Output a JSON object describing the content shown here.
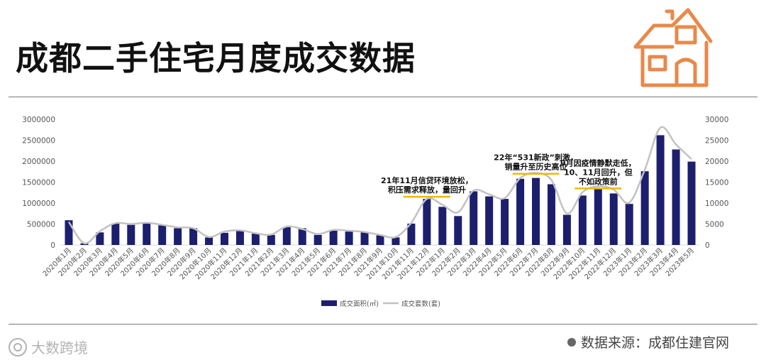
{
  "header": {
    "title": "成都二手住宅月度成交数据"
  },
  "icons": {
    "house": "house-icon",
    "watermark": "weibo-logo-icon"
  },
  "colors": {
    "bar": "#1c1e6e",
    "line": "#c2c2c2",
    "annotation": "#f2b800",
    "house": "#e8894a"
  },
  "footer": {
    "source": "数据来源：成都住建官网",
    "watermark": "大数跨境"
  },
  "chart_data": {
    "type": "bar",
    "categories": [
      "2020年1月",
      "2020年2月",
      "2020年3月",
      "2020年4月",
      "2020年5月",
      "2020年6月",
      "2020年7月",
      "2020年8月",
      "2020年9月",
      "2020年10月",
      "2020年11月",
      "2020年12月",
      "2021年1月",
      "2021年2月",
      "2021年3月",
      "2021年4月",
      "2021年5月",
      "2021年6月",
      "2021年7月",
      "2021年8月",
      "2021年9月",
      "2021年10月",
      "2021年11月",
      "2021年12月",
      "2022年1月",
      "2022年2月",
      "2022年3月",
      "2022年4月",
      "2022年5月",
      "2022年6月",
      "2022年7月",
      "2022年8月",
      "2022年9月",
      "2022年10月",
      "2022年11月",
      "2022年12月",
      "2023年1月",
      "2023年2月",
      "2023年3月",
      "2023年4月",
      "2023年5月"
    ],
    "series": [
      {
        "name": "成交面积(㎡)",
        "type": "bar",
        "axis": "left",
        "values": [
          590000,
          40000,
          300000,
          510000,
          480000,
          510000,
          470000,
          400000,
          400000,
          180000,
          290000,
          340000,
          270000,
          240000,
          430000,
          400000,
          240000,
          340000,
          320000,
          300000,
          230000,
          180000,
          510000,
          1100000,
          910000,
          690000,
          1280000,
          1160000,
          1100000,
          1580000,
          1600000,
          1450000,
          720000,
          1180000,
          1360000,
          1230000,
          980000,
          1760000,
          2620000,
          2280000,
          1990000
        ]
      },
      {
        "name": "成交套数(套)",
        "type": "line",
        "axis": "right",
        "values": [
          5500,
          400,
          3300,
          5200,
          5000,
          5300,
          4800,
          4200,
          4000,
          1900,
          3200,
          3500,
          2800,
          2500,
          4400,
          3800,
          2600,
          3600,
          3400,
          3100,
          2400,
          1900,
          5300,
          11000,
          9600,
          7800,
          13000,
          12100,
          11200,
          16000,
          17200,
          15500,
          7500,
          12600,
          14000,
          13200,
          10100,
          18000,
          28000,
          24000,
          20500
        ]
      }
    ],
    "yleft": {
      "ticks": [
        "0",
        "500000",
        "1000000",
        "1500000",
        "2000000",
        "2500000",
        "3000000"
      ],
      "ylim": [
        0,
        3000000
      ]
    },
    "yright": {
      "ticks": [
        "0",
        "5000",
        "10000",
        "15000",
        "20000",
        "25000",
        "30000"
      ],
      "ylim": [
        0,
        30000
      ]
    },
    "annotations": [
      {
        "lines": [
          "21年11月信贷环境放松，",
          "积压需求释放，量回升"
        ],
        "x_from": "2021年11月",
        "x_to": "2022年1月",
        "line_value": 11500
      },
      {
        "lines": [
          "22年“531新政”刺激，",
          "销量升至历史高位"
        ],
        "x_from": "2022年6月",
        "x_to": "2022年8月",
        "line_value": 17000
      },
      {
        "lines": [
          "9月因疫情静默走低，",
          "10、11月回升，但",
          "不如政策前"
        ],
        "x_from": "2022年10月",
        "x_to": "2022年12月",
        "line_value": 13500
      }
    ],
    "legend": {
      "position": "bottom"
    }
  }
}
